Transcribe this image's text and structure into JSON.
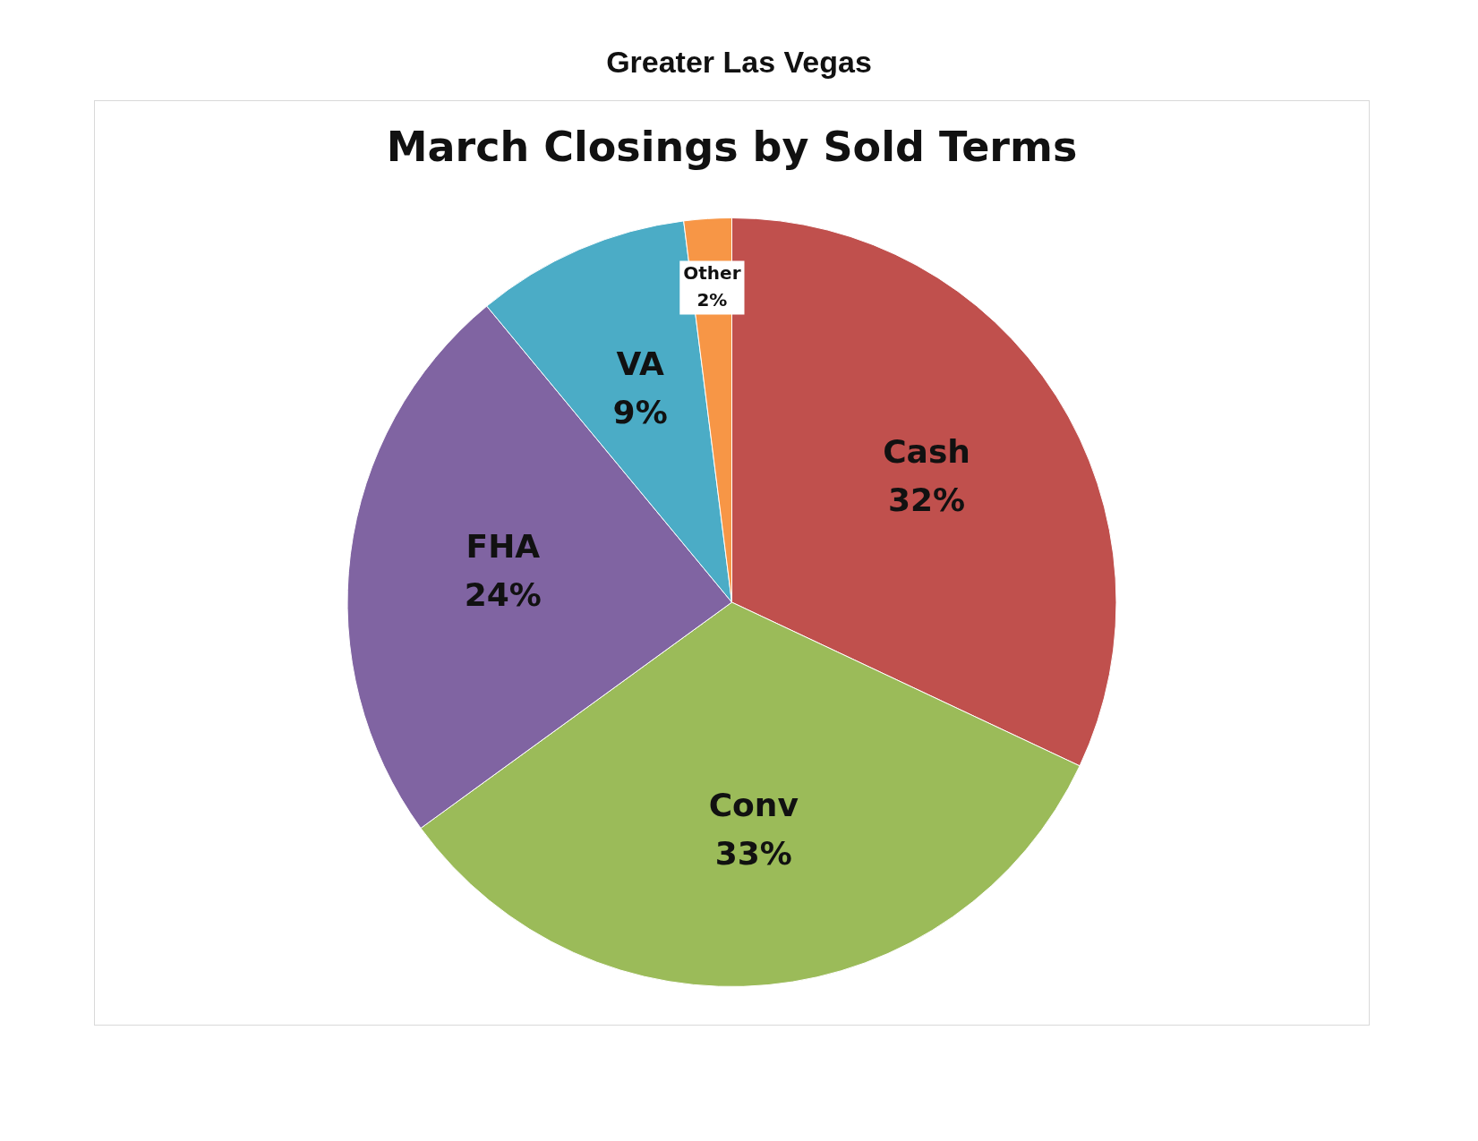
{
  "chart_data": {
    "type": "pie",
    "title": "March Closings by Sold Terms",
    "subtitle": "Greater Las Vegas",
    "categories": [
      "Cash",
      "Conv",
      "FHA",
      "VA",
      "Other"
    ],
    "values": [
      32,
      33,
      24,
      9,
      2
    ],
    "colors": [
      "#c0504d",
      "#9bbb59",
      "#8064a2",
      "#4bacc6",
      "#f79646"
    ],
    "value_labels": [
      "32%",
      "33%",
      "24%",
      "9%",
      "2%"
    ],
    "legend": false
  }
}
